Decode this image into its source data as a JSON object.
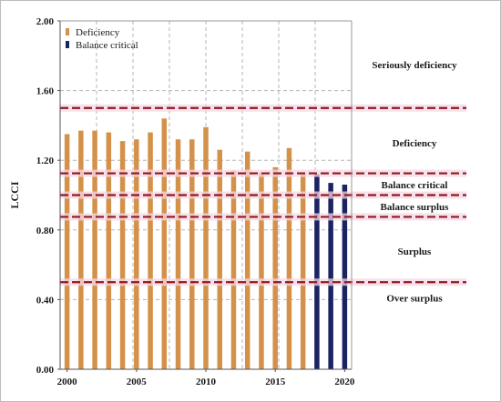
{
  "chart_data": {
    "type": "bar",
    "title": "",
    "xlabel": "",
    "ylabel": "LCCI",
    "xlim": [
      1999.5,
      2020.5
    ],
    "ylim": [
      0.0,
      2.0
    ],
    "grid": true,
    "legend_position": "top-left",
    "x_ticks": [
      "2000",
      "2005",
      "2010",
      "2015",
      "2020"
    ],
    "y_ticks": [
      "0.00",
      "0.40",
      "0.80",
      "1.20",
      "1.60",
      "2.00"
    ],
    "series": [
      {
        "name": "Deficiency",
        "color": "#D4914A",
        "x": [
          2000,
          2001,
          2002,
          2003,
          2004,
          2005,
          2006,
          2007,
          2008,
          2009,
          2010,
          2011,
          2012,
          2013,
          2014,
          2015,
          2016,
          2017
        ],
        "values": [
          1.35,
          1.37,
          1.37,
          1.36,
          1.31,
          1.32,
          1.36,
          1.44,
          1.32,
          1.32,
          1.39,
          1.26,
          1.14,
          1.25,
          1.13,
          1.16,
          1.27,
          1.13
        ]
      },
      {
        "name": "Balance critical",
        "color": "#1B2363",
        "x": [
          2018,
          2019,
          2020
        ],
        "values": [
          1.12,
          1.07,
          1.06
        ]
      }
    ],
    "thresholds": [
      {
        "value": 1.5,
        "color": "#8B1A1A"
      },
      {
        "value": 1.125,
        "color": "#8B1A1A"
      },
      {
        "value": 1.0,
        "color": "#8B1A1A"
      },
      {
        "value": 0.875,
        "color": "#8B1A1A"
      },
      {
        "value": 0.5,
        "color": "#8B1A1A"
      }
    ],
    "zones": [
      {
        "label": "Seriously deficiency",
        "value": 1.75
      },
      {
        "label": "Deficiency",
        "value": 1.3
      },
      {
        "label": "Balance critical",
        "value": 1.06
      },
      {
        "label": "Balance surplus",
        "value": 0.935
      },
      {
        "label": "Surplus",
        "value": 0.68
      },
      {
        "label": "Over surplus",
        "value": 0.41
      }
    ]
  }
}
